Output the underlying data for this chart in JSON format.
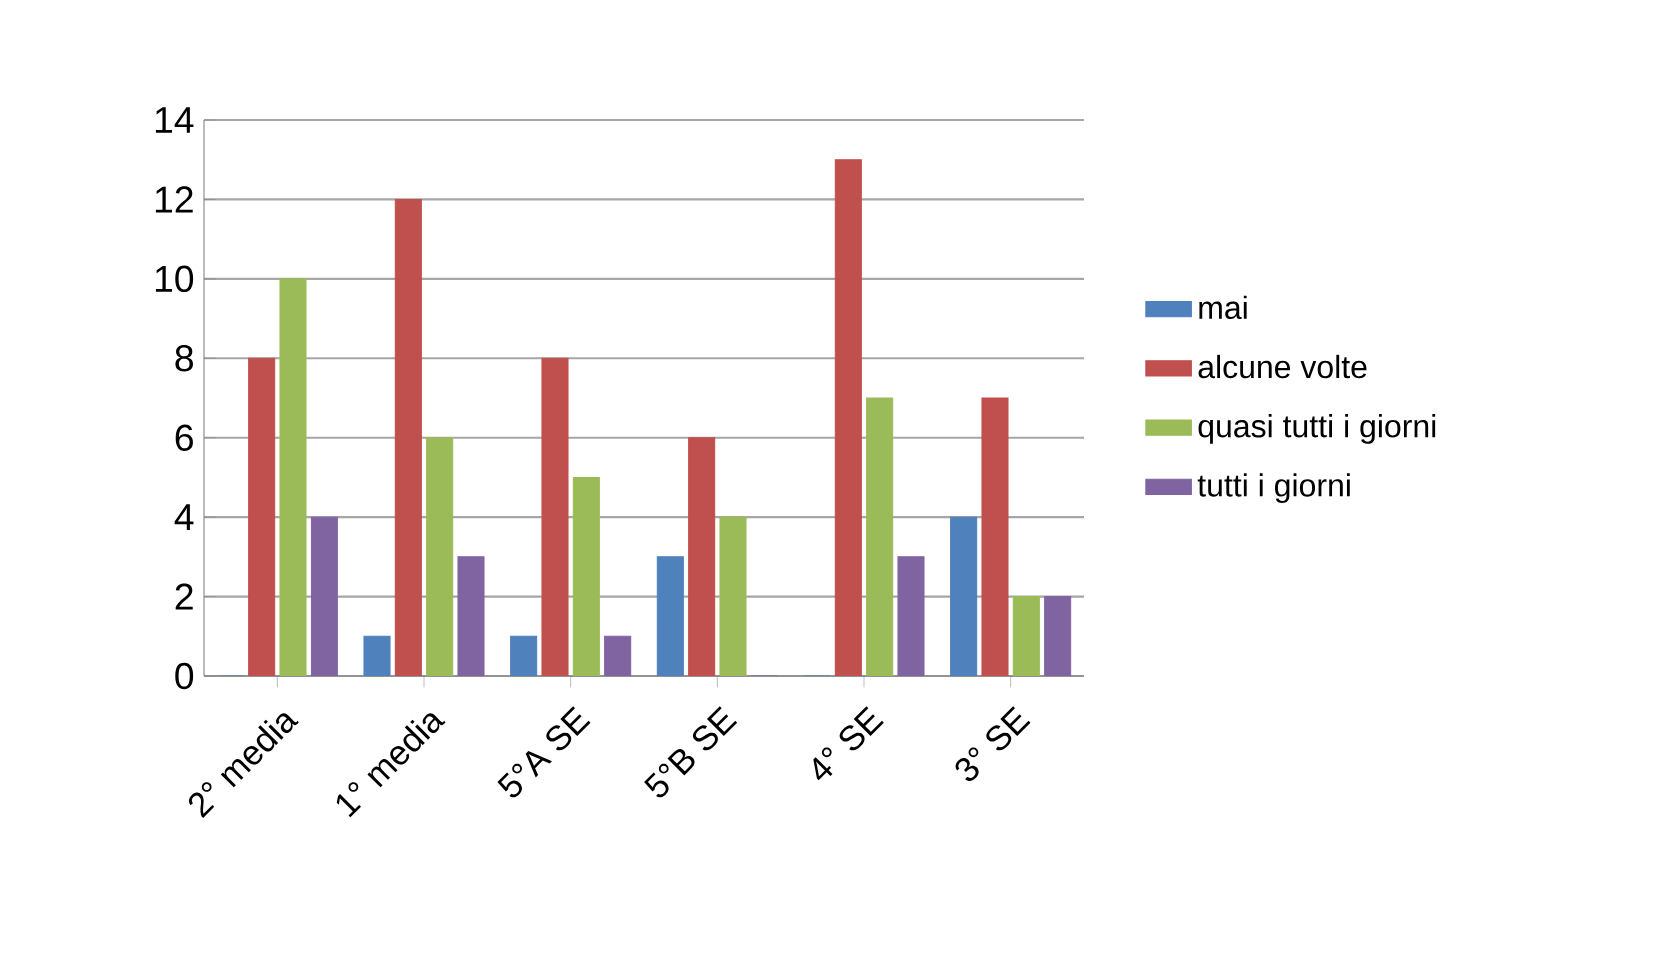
{
  "chart_data": {
    "type": "bar",
    "categories": [
      "2° media",
      "1° media",
      "5°A SE",
      "5°B SE",
      "4° SE",
      "3° SE"
    ],
    "series": [
      {
        "name": "mai",
        "color": "#4f81bd",
        "values": [
          0,
          1,
          1,
          3,
          0,
          4
        ]
      },
      {
        "name": "alcune volte",
        "color": "#c0504d",
        "values": [
          8,
          12,
          8,
          6,
          13,
          7
        ]
      },
      {
        "name": "quasi tutti i giorni",
        "color": "#9bbb59",
        "values": [
          10,
          6,
          5,
          4,
          7,
          2
        ]
      },
      {
        "name": "tutti i giorni",
        "color": "#8064a2",
        "values": [
          4,
          3,
          1,
          0,
          3,
          2
        ]
      }
    ],
    "ylim": [
      0,
      14
    ],
    "yticks": [
      0,
      2,
      4,
      6,
      8,
      10,
      12,
      14
    ],
    "grid": "y",
    "legend": "right"
  }
}
